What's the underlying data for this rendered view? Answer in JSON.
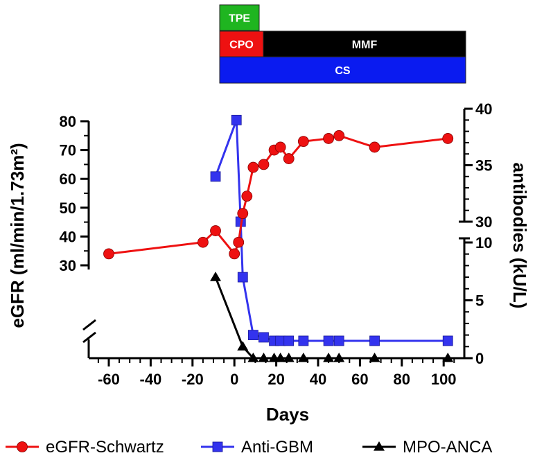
{
  "chart_data": {
    "type": "line",
    "xlabel": "Days",
    "y_left_label": "eGFR (ml/min/1.73m²)",
    "y_right_label": "antibodies (kU/L)",
    "x_ticks": [
      -60,
      -40,
      -20,
      0,
      20,
      40,
      60,
      80,
      100
    ],
    "y_left_ticks": [
      30,
      40,
      50,
      60,
      70,
      80
    ],
    "y_right_ticks_lower": [
      0,
      5,
      10
    ],
    "y_right_ticks_upper": [
      30,
      35,
      40
    ],
    "treatment_bars": [
      {
        "label": "TPE",
        "color": "#1fb520",
        "row": 0,
        "start": -9,
        "end": 3
      },
      {
        "label": "CPO",
        "color": "#ee1111",
        "row": 1,
        "start": -9,
        "end": 3
      },
      {
        "label": "MMF",
        "color": "#000000",
        "row": 1,
        "start": 3,
        "end": 102
      },
      {
        "label": "CS",
        "color": "#0a1bf0",
        "row": 2,
        "start": -9,
        "end": 102
      }
    ],
    "series": [
      {
        "name": "eGFR-Schwartz",
        "color": "#ee1111",
        "marker": "circle",
        "axis": "left",
        "x": [
          -60,
          -15,
          -9,
          0,
          2,
          4,
          6,
          9,
          14,
          19,
          22,
          26,
          33,
          45,
          50,
          67,
          102
        ],
        "y": [
          34,
          38,
          42,
          34,
          38,
          48,
          54,
          64,
          65,
          70,
          71,
          67,
          73,
          74,
          75,
          71,
          74
        ]
      },
      {
        "name": "Anti-GBM",
        "color": "#3333ee",
        "marker": "square",
        "axis": "right",
        "x": [
          -9,
          1,
          3,
          4,
          9,
          14,
          19,
          22,
          26,
          33,
          45,
          50,
          67,
          102
        ],
        "y": [
          34,
          39,
          30,
          7,
          2,
          1.8,
          1.5,
          1.5,
          1.5,
          1.5,
          1.5,
          1.5,
          1.5,
          1.5
        ]
      },
      {
        "name": "MPO-ANCA",
        "color": "#000000",
        "marker": "triangle",
        "axis": "right",
        "x": [
          -9,
          4,
          9,
          14,
          19,
          22,
          26,
          33,
          45,
          50,
          67,
          102
        ],
        "y": [
          7,
          1,
          0,
          0,
          0,
          0,
          0,
          0,
          0,
          0,
          0,
          0
        ]
      }
    ],
    "legend_position": "bottom"
  }
}
